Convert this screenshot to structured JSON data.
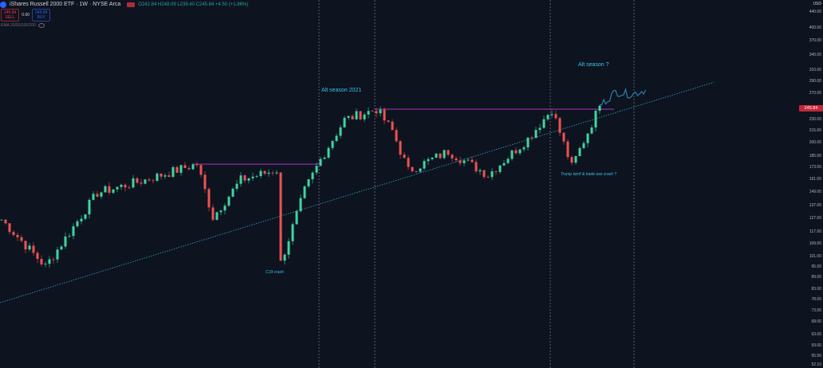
{
  "header": {
    "title": "iShares Russell 2000 ETF · 1W · NYSE Arca",
    "ohlc": "O242.84 H248.09 L239.40 C245.84 +4.50 (+1.86%)",
    "sell_price": "245.84",
    "sell_label": "SELL",
    "spread": "0.00",
    "buy_price": "245.84",
    "buy_label": "BUY",
    "indicator": "EMA 20/50/100/200"
  },
  "colors": {
    "background": "#0e1320",
    "up": "#3fd6a0",
    "down": "#ef5350",
    "projection": "#2a7fa8",
    "resistance": "#c23bd4",
    "trendline": "#2aa6c0",
    "annotation": "#3bc4e6",
    "price_badge": "#c2283a"
  },
  "chart_data": {
    "type": "candlestick",
    "title": "",
    "xlabel": "",
    "ylabel": "",
    "currency": "USD",
    "y_scale": "log",
    "ylim": [
      52.1,
      440
    ],
    "y_ticks": [
      "440.00",
      "400.00",
      "370.00",
      "340.00",
      "310.00",
      "290.00",
      "270.00",
      "230.00",
      "215.00",
      "200.00",
      "185.00",
      "173.00",
      "161.00",
      "149.00",
      "137.00",
      "127.00",
      "117.00",
      "109.00",
      "101.00",
      "95.00",
      "89.00",
      "83.00",
      "78.00",
      "73.00",
      "68.00",
      "63.00",
      "59.00",
      "55.50",
      "52.10"
    ],
    "last_price": "245.84",
    "grid": false,
    "price_path_anchors": [
      [
        0,
        126
      ],
      [
        11,
        95
      ],
      [
        24,
        148
      ],
      [
        36,
        160
      ],
      [
        49,
        176
      ],
      [
        53,
        128
      ],
      [
        60,
        160
      ],
      [
        69,
        170
      ],
      [
        70,
        97
      ],
      [
        76,
        150
      ],
      [
        80,
        181
      ],
      [
        86,
        230
      ],
      [
        94,
        245
      ],
      [
        98,
        215
      ],
      [
        102,
        169
      ],
      [
        112,
        190
      ],
      [
        122,
        165
      ],
      [
        132,
        205
      ],
      [
        138,
        245
      ],
      [
        143,
        173
      ],
      [
        150,
        250
      ]
    ],
    "projection": [
      [
        150,
        250
      ],
      [
        154,
        272
      ],
      [
        158,
        268
      ],
      [
        162,
        276
      ]
    ],
    "resistance_levels": [
      176,
      245
    ],
    "trendline": {
      "start": [
        0,
        76.4
      ],
      "end": [
        179,
        288
      ]
    },
    "vertical_markers": [
      80,
      94,
      138,
      159
    ],
    "annotations": [
      {
        "text": "Alt season 2021"
      },
      {
        "text": "Alt season ?"
      },
      {
        "text": "C19 crash"
      },
      {
        "text": "Trump tarrif & trade war crash ?"
      }
    ]
  }
}
